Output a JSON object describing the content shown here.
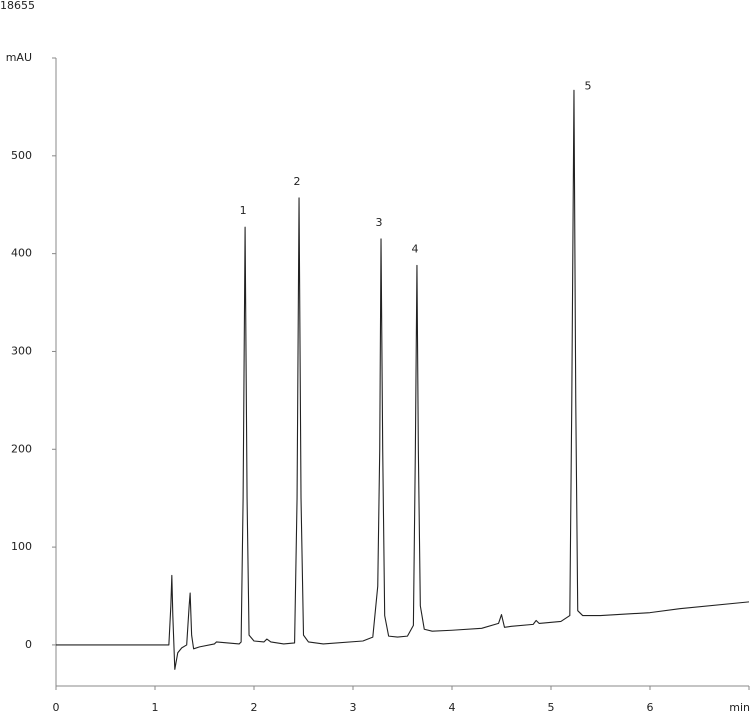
{
  "chart_data": {
    "type": "line",
    "title": "18655",
    "x": [
      0,
      1.14,
      1.16,
      1.17,
      1.18,
      1.2,
      1.23,
      1.27,
      1.32,
      1.345,
      1.355,
      1.37,
      1.39,
      1.45,
      1.6,
      1.62,
      1.85,
      1.87,
      1.89,
      1.91,
      1.93,
      1.95,
      2.0,
      2.1,
      2.13,
      2.17,
      2.3,
      2.41,
      2.435,
      2.455,
      2.475,
      2.5,
      2.55,
      2.7,
      3.1,
      3.2,
      3.25,
      3.27,
      3.283,
      3.3,
      3.32,
      3.36,
      3.45,
      3.55,
      3.61,
      3.63,
      3.646,
      3.66,
      3.68,
      3.72,
      3.8,
      4.0,
      4.3,
      4.47,
      4.5,
      4.53,
      4.6,
      4.82,
      4.85,
      4.88,
      5.1,
      5.19,
      5.21,
      5.232,
      5.25,
      5.27,
      5.32,
      5.5,
      6.0,
      6.3,
      7.0
    ],
    "values": [
      0,
      0,
      40,
      71,
      30,
      -25,
      -8,
      -3,
      0,
      40,
      53,
      10,
      -4,
      -2,
      1,
      3,
      1,
      3,
      150,
      427,
      150,
      10,
      4,
      3,
      6,
      3,
      1,
      2,
      150,
      457,
      150,
      10,
      3,
      1,
      4,
      8,
      60,
      200,
      415,
      200,
      30,
      9,
      8,
      9,
      20,
      200,
      388,
      200,
      40,
      16,
      14,
      15,
      17,
      22,
      31,
      18,
      19,
      21,
      25,
      22,
      24,
      30,
      250,
      567,
      250,
      35,
      30,
      30,
      33,
      37,
      44
    ],
    "color": "#222222",
    "xlim": [
      0,
      7
    ],
    "xticks": [
      0,
      1,
      2,
      3,
      4,
      5,
      6,
      {
        "value": 7,
        "label": "min"
      }
    ],
    "ylim": [
      -42,
      600
    ],
    "yticks": [
      0,
      100,
      200,
      300,
      400,
      500,
      {
        "value": 600,
        "label": "mAU"
      }
    ],
    "grid": false,
    "annotations": [
      {
        "text": "1",
        "x": 1.91,
        "y": 427
      },
      {
        "text": "2",
        "x": 2.455,
        "y": 457
      },
      {
        "text": "3",
        "x": 3.283,
        "y": 415
      },
      {
        "text": "4",
        "x": 3.646,
        "y": 388
      },
      {
        "text": "5",
        "x": 5.232,
        "y": 567
      }
    ]
  }
}
